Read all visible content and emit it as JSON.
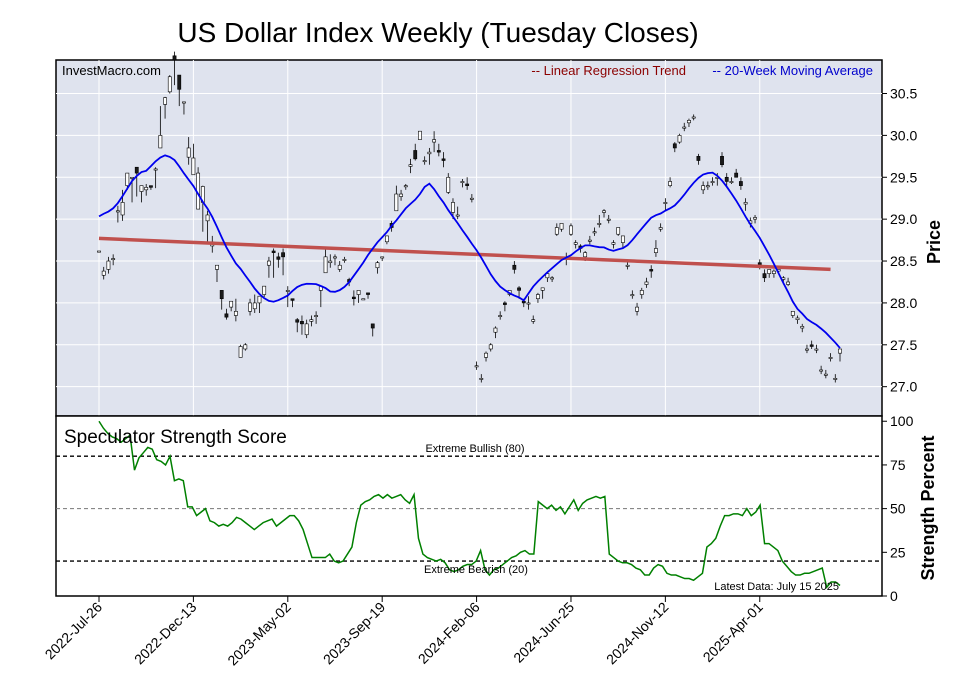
{
  "chart_data": [
    {
      "type": "candlestick",
      "title": "US Dollar Index Weekly (Tuesday Closes)",
      "watermark": "InvestMacro.com",
      "ylabel": "Price",
      "ylim": [
        26.65,
        30.9
      ],
      "yticks": [
        "27.0",
        "27.5",
        "28.0",
        "28.5",
        "29.0",
        "29.5",
        "30.0",
        "30.5"
      ],
      "x_tick_labels": [
        "2022-Jul-26",
        "2022-Dec-13",
        "2023-May-02",
        "2023-Sep-19",
        "2024-Feb-06",
        "2024-Jun-25",
        "2024-Nov-12",
        "2025-Apr-01"
      ],
      "x_tick_weeks": [
        0,
        20,
        40,
        60,
        80,
        100,
        120,
        140
      ],
      "legend": [
        {
          "label": "-- Linear Regression Trend",
          "color": "#8b0000"
        },
        {
          "label": "-- 20-Week Moving Average",
          "color": "#0000cc"
        }
      ],
      "grid": true,
      "trend_line": {
        "start_week": 0,
        "start": 28.77,
        "end_week": 155,
        "end": 28.4
      },
      "candles": [
        [
          28.62,
          28.62,
          28.62,
          28.62
        ],
        [
          28.33,
          28.43,
          28.38,
          28.28
        ],
        [
          28.4,
          28.55,
          28.5,
          28.35
        ],
        [
          28.52,
          28.58,
          28.53,
          28.45
        ],
        [
          29.09,
          29.16,
          29.1,
          28.96
        ],
        [
          29.05,
          29.35,
          29.2,
          28.98
        ],
        [
          29.4,
          29.55,
          29.55,
          29.35
        ],
        [
          29.5,
          29.48,
          29.5,
          29.2
        ],
        [
          29.62,
          29.62,
          29.55,
          29.27
        ],
        [
          29.33,
          29.4,
          29.4,
          29.2
        ],
        [
          29.35,
          29.42,
          29.38,
          29.28
        ],
        [
          29.4,
          29.4,
          29.38,
          29.35
        ],
        [
          29.6,
          29.62,
          29.6,
          29.37
        ],
        [
          29.85,
          30.35,
          30.0,
          29.85
        ],
        [
          30.37,
          30.46,
          30.45,
          30.2
        ],
        [
          30.52,
          30.72,
          30.7,
          30.5
        ],
        [
          30.95,
          31.0,
          30.9,
          30.6
        ],
        [
          30.72,
          30.65,
          30.55,
          30.35
        ],
        [
          30.4,
          30.05,
          30.4,
          30.25
        ],
        [
          29.74,
          29.98,
          29.85,
          29.65
        ],
        [
          29.53,
          29.9,
          29.73,
          29.55
        ],
        [
          29.12,
          29.62,
          29.55,
          29.4
        ],
        [
          29.2,
          29.4,
          29.39,
          28.85
        ],
        [
          28.98,
          29.1,
          29.05,
          28.7
        ],
        [
          28.68,
          28.8,
          28.73,
          28.6
        ],
        [
          28.4,
          28.45,
          28.45,
          28.25
        ],
        [
          28.15,
          28.15,
          28.05,
          27.92
        ],
        [
          27.87,
          27.93,
          27.83,
          27.8
        ],
        [
          27.95,
          28.0,
          28.02,
          27.9
        ],
        [
          27.85,
          28.05,
          27.9,
          27.78
        ],
        [
          27.35,
          27.5,
          27.48,
          27.38
        ],
        [
          27.45,
          27.52,
          27.5,
          27.43
        ],
        [
          27.9,
          28.05,
          28.0,
          27.85
        ],
        [
          27.93,
          28.1,
          28.0,
          27.88
        ],
        [
          28.0,
          28.05,
          28.08,
          27.88
        ],
        [
          28.1,
          28.1,
          28.2,
          28.07
        ],
        [
          28.45,
          28.55,
          28.5,
          28.3
        ],
        [
          28.62,
          28.65,
          28.6,
          28.3
        ],
        [
          28.55,
          28.6,
          28.52,
          28.42
        ],
        [
          28.6,
          28.65,
          28.55,
          28.33
        ],
        [
          28.15,
          28.2,
          28.15,
          27.95
        ],
        [
          28.05,
          28.05,
          28.03,
          27.95
        ],
        [
          27.8,
          27.82,
          27.77,
          27.65
        ],
        [
          27.78,
          27.85,
          27.75,
          27.62
        ],
        [
          27.62,
          27.8,
          27.75,
          27.58
        ],
        [
          27.78,
          27.85,
          27.8,
          27.72
        ],
        [
          27.85,
          27.9,
          27.85,
          27.75
        ],
        [
          28.15,
          28.12,
          28.2,
          27.95
        ],
        [
          28.36,
          28.65,
          28.55,
          28.4
        ],
        [
          28.48,
          28.58,
          28.5,
          28.42
        ],
        [
          28.55,
          28.58,
          28.55,
          28.45
        ],
        [
          28.4,
          28.5,
          28.45,
          28.37
        ],
        [
          28.52,
          28.55,
          28.52,
          28.48
        ],
        [
          28.28,
          28.3,
          28.25,
          28.2
        ],
        [
          28.07,
          28.15,
          28.05,
          27.97
        ],
        [
          28.1,
          28.12,
          28.15,
          28.0
        ],
        [
          28.05,
          28.05,
          28.05,
          28.05
        ],
        [
          28.12,
          28.12,
          28.1,
          28.05
        ],
        [
          27.75,
          27.75,
          27.7,
          27.6
        ],
        [
          28.42,
          28.5,
          28.48,
          28.35
        ],
        [
          28.55,
          28.55,
          28.55,
          28.5
        ],
        [
          28.73,
          28.75,
          28.8,
          28.7
        ],
        [
          28.95,
          28.98,
          28.9,
          28.85
        ],
        [
          29.1,
          29.4,
          29.3,
          29.1
        ],
        [
          29.27,
          29.35,
          29.3,
          29.22
        ],
        [
          29.4,
          29.42,
          29.4,
          29.35
        ],
        [
          29.63,
          29.72,
          29.65,
          29.55
        ],
        [
          29.82,
          29.9,
          29.72,
          29.7
        ],
        [
          29.95,
          30.05,
          30.05,
          29.95
        ],
        [
          29.7,
          29.75,
          29.7,
          29.65
        ],
        [
          29.78,
          29.85,
          29.8,
          29.65
        ],
        [
          29.92,
          30.05,
          29.95,
          29.8
        ],
        [
          29.82,
          29.9,
          29.8,
          29.75
        ],
        [
          29.72,
          29.8,
          29.7,
          29.62
        ],
        [
          29.32,
          29.55,
          29.5,
          29.3
        ],
        [
          29.08,
          29.25,
          29.2,
          29.0
        ],
        [
          29.05,
          29.15,
          29.05,
          29.0
        ],
        [
          29.45,
          29.48,
          29.45,
          29.38
        ],
        [
          29.42,
          29.5,
          29.4,
          29.35
        ],
        [
          29.25,
          29.3,
          29.25,
          29.2
        ],
        [
          27.25,
          27.3,
          27.25,
          27.2
        ],
        [
          27.1,
          27.15,
          27.1,
          27.05
        ],
        [
          27.35,
          27.42,
          27.4,
          27.3
        ],
        [
          27.45,
          27.52,
          27.5,
          27.42
        ],
        [
          27.65,
          27.72,
          27.7,
          27.58
        ],
        [
          27.85,
          27.9,
          27.85,
          27.8
        ],
        [
          28.0,
          28.02,
          27.98,
          27.9
        ],
        [
          28.1,
          28.15,
          28.15,
          28.08
        ],
        [
          28.45,
          28.5,
          28.4,
          28.35
        ],
        [
          28.18,
          28.2,
          28.15,
          28.05
        ],
        [
          28.02,
          28.05,
          28.0,
          27.95
        ],
        [
          28.0,
          28.08,
          28.0,
          27.92
        ],
        [
          27.78,
          27.85,
          27.8,
          27.75
        ],
        [
          28.05,
          28.12,
          28.1,
          28.0
        ],
        [
          28.15,
          28.15,
          28.18,
          28.05
        ],
        [
          28.3,
          28.35,
          28.35,
          28.25
        ],
        [
          28.3,
          28.32,
          28.3,
          28.25
        ],
        [
          28.82,
          28.95,
          28.9,
          28.8
        ],
        [
          28.88,
          28.95,
          28.95,
          28.85
        ],
        [
          28.55,
          28.6,
          28.55,
          28.45
        ],
        [
          28.82,
          28.95,
          28.92,
          28.8
        ],
        [
          28.7,
          28.75,
          28.72,
          28.65
        ],
        [
          28.68,
          28.7,
          28.65,
          28.6
        ],
        [
          28.55,
          28.62,
          28.6,
          28.5
        ],
        [
          28.75,
          28.8,
          28.75,
          28.7
        ],
        [
          28.85,
          28.9,
          28.85,
          28.8
        ],
        [
          28.95,
          29.05,
          28.95,
          28.9
        ],
        [
          29.08,
          29.12,
          29.1,
          29.02
        ],
        [
          29.0,
          29.05,
          29.0,
          28.95
        ],
        [
          28.7,
          28.75,
          28.72,
          28.65
        ],
        [
          28.82,
          28.9,
          28.9,
          28.8
        ],
        [
          28.72,
          28.7,
          28.8,
          28.65
        ],
        [
          28.45,
          28.5,
          28.45,
          28.4
        ],
        [
          28.1,
          28.15,
          28.1,
          28.05
        ],
        [
          27.9,
          28.0,
          27.95,
          27.85
        ],
        [
          28.1,
          28.18,
          28.15,
          28.05
        ],
        [
          28.22,
          28.3,
          28.25,
          28.18
        ],
        [
          28.4,
          28.45,
          28.38,
          28.3
        ],
        [
          28.6,
          28.75,
          28.65,
          28.55
        ],
        [
          28.88,
          28.95,
          28.9,
          28.85
        ],
        [
          29.2,
          29.25,
          29.2,
          29.1
        ],
        [
          29.4,
          29.5,
          29.45,
          29.38
        ],
        [
          29.9,
          29.92,
          29.85,
          29.8
        ],
        [
          29.92,
          30.02,
          30.0,
          29.9
        ],
        [
          30.1,
          30.15,
          30.1,
          30.05
        ],
        [
          30.15,
          30.2,
          30.18,
          30.1
        ],
        [
          30.22,
          30.25,
          30.22,
          30.18
        ],
        [
          29.75,
          29.78,
          29.7,
          29.65
        ],
        [
          29.35,
          29.45,
          29.4,
          29.3
        ],
        [
          29.4,
          29.45,
          29.4,
          29.35
        ],
        [
          29.45,
          29.5,
          29.45,
          29.4
        ],
        [
          29.5,
          29.55,
          29.5,
          29.4
        ],
        [
          29.75,
          29.8,
          29.65,
          29.62
        ],
        [
          29.5,
          29.55,
          29.45,
          29.4
        ],
        [
          29.45,
          29.5,
          29.45,
          29.42
        ],
        [
          29.55,
          29.6,
          29.5,
          29.5
        ],
        [
          29.45,
          29.5,
          29.4,
          29.35
        ],
        [
          29.18,
          29.25,
          29.2,
          29.1
        ],
        [
          28.95,
          29.02,
          28.98,
          28.9
        ],
        [
          29.0,
          29.05,
          29.02,
          28.95
        ],
        [
          28.48,
          28.52,
          28.45,
          28.4
        ],
        [
          28.35,
          28.4,
          28.3,
          28.25
        ],
        [
          28.35,
          28.4,
          28.4,
          28.3
        ],
        [
          28.35,
          28.4,
          28.38,
          28.3
        ],
        [
          28.38,
          28.4,
          28.4,
          28.35
        ],
        [
          28.28,
          28.32,
          28.3,
          28.22
        ],
        [
          28.22,
          28.3,
          28.25,
          28.2
        ],
        [
          27.85,
          27.9,
          27.9,
          27.82
        ],
        [
          27.8,
          27.85,
          27.82,
          27.75
        ],
        [
          27.7,
          27.75,
          27.72,
          27.65
        ],
        [
          27.45,
          27.5,
          27.45,
          27.4
        ],
        [
          27.5,
          27.55,
          27.48,
          27.45
        ],
        [
          27.45,
          27.5,
          27.45,
          27.4
        ],
        [
          27.2,
          27.25,
          27.2,
          27.15
        ],
        [
          27.15,
          27.2,
          27.15,
          27.1
        ],
        [
          27.35,
          27.4,
          27.35,
          27.3
        ],
        [
          27.1,
          27.15,
          27.1,
          27.05
        ],
        [
          27.4,
          27.42,
          27.45,
          27.3
        ]
      ]
    },
    {
      "type": "line",
      "title": "Speculator Strength Score",
      "ylabel": "Strength Percent",
      "ylim": [
        0,
        103
      ],
      "yticks": [
        "0",
        "25",
        "50",
        "75",
        "100"
      ],
      "reference_lines": [
        {
          "value": 80,
          "label": "Extreme Bullish (80)"
        },
        {
          "value": 50,
          "label": ""
        },
        {
          "value": 20,
          "label": "Extreme Bearish (20)"
        }
      ],
      "footnote": "Latest Data: July 15 2025",
      "values": [
        100,
        96,
        93,
        91,
        90,
        88,
        90,
        92,
        72,
        79,
        82,
        85,
        84,
        78,
        77,
        75,
        80,
        66,
        67,
        66,
        51,
        51,
        46,
        48,
        50,
        43,
        42,
        40,
        41,
        40,
        42,
        45,
        44,
        42,
        40,
        38,
        40,
        42,
        43,
        44,
        40,
        42,
        44,
        46,
        46,
        43,
        38,
        30,
        22,
        22,
        22,
        22,
        24,
        20,
        19,
        20,
        24,
        28,
        42,
        52,
        54,
        55,
        57,
        58,
        56,
        58,
        56,
        57,
        58,
        55,
        53,
        58,
        33,
        24,
        22,
        21,
        20,
        21,
        19,
        15,
        14,
        15,
        17,
        18,
        18,
        20,
        26,
        15,
        12,
        15,
        16,
        18,
        20,
        22,
        23,
        25,
        26,
        24,
        24,
        54,
        52,
        50,
        52,
        49,
        51,
        47,
        51,
        55,
        49,
        53,
        55,
        56,
        57,
        56,
        57,
        24,
        22,
        20,
        19,
        19,
        18,
        16,
        15,
        12,
        12,
        16,
        18,
        17,
        13,
        12,
        12,
        11,
        10,
        10,
        9,
        11,
        13,
        28,
        30,
        33,
        40,
        46,
        46,
        47,
        47,
        46,
        50,
        46,
        48,
        52,
        30,
        30,
        28,
        26,
        20,
        17,
        14,
        12,
        12,
        13,
        13,
        14,
        15,
        16,
        5,
        8,
        8,
        6
      ]
    }
  ]
}
